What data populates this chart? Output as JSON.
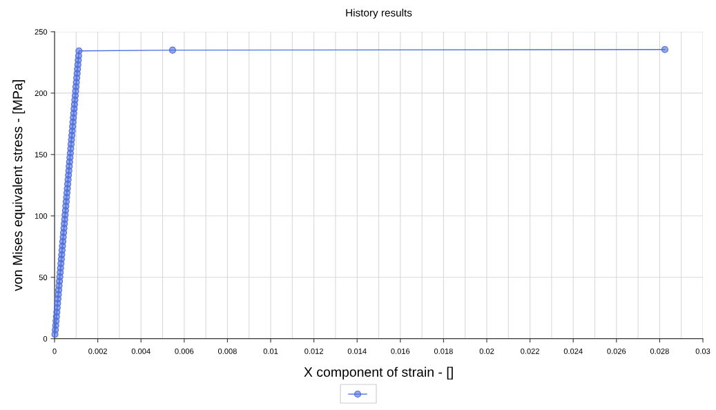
{
  "chart_data": {
    "type": "line",
    "title": "History results",
    "xlabel": "X component of strain - []",
    "ylabel": "von Mises equivalent stress - [MPa]",
    "series": [
      {
        "color": "#4f70dc",
        "x": [
          1.74e-05,
          3.48e-05,
          5.22e-05,
          6.96e-05,
          8.7e-05,
          0.0001043,
          0.0001217,
          0.0001391,
          0.0001565,
          0.0001739,
          0.0001913,
          0.0002087,
          0.0002261,
          0.0002435,
          0.0002609,
          0.0002783,
          0.0002956,
          0.000313,
          0.0003304,
          0.0003478,
          0.0003652,
          0.0003826,
          0.0004,
          0.0004174,
          0.0004348,
          0.0004522,
          0.0004696,
          0.0004869,
          0.0005043,
          0.0005217,
          0.0005391,
          0.0005565,
          0.0005739,
          0.0005913,
          0.0006087,
          0.0006261,
          0.0006435,
          0.0006609,
          0.0006782,
          0.0006956,
          0.000713,
          0.0007304,
          0.0007478,
          0.0007652,
          0.0007826,
          0.0008,
          0.0008174,
          0.0008348,
          0.0008522,
          0.0008696,
          0.0008869,
          0.0009043,
          0.0009217,
          0.0009391,
          0.0009565,
          0.0009739,
          0.0009913,
          0.0010087,
          0.0010261,
          0.0010435,
          0.0010609,
          0.0010782,
          0.0010956,
          0.001113,
          0.0011304,
          0.00546,
          0.02824
        ],
        "values": [
          3.6,
          7.2,
          10.8,
          14.4,
          18,
          21.6,
          25.2,
          28.8,
          32.4,
          36,
          39.6,
          43.2,
          46.8,
          50.4,
          54,
          57.6,
          61.2,
          64.8,
          68.4,
          72,
          75.6,
          79.2,
          82.8,
          86.4,
          90,
          93.6,
          97.2,
          100.8,
          104.4,
          108,
          111.6,
          115.2,
          118.8,
          122.4,
          126,
          129.6,
          133.2,
          136.8,
          140.4,
          144,
          147.6,
          151.2,
          154.8,
          158.4,
          162,
          165.6,
          169.2,
          172.8,
          176.4,
          180,
          183.6,
          187.2,
          190.8,
          194.4,
          198,
          201.6,
          205.2,
          208.8,
          212.4,
          216,
          219.6,
          223.2,
          226.8,
          230.4,
          234.4,
          235.0,
          235.5
        ]
      }
    ],
    "xlim": [
      0,
      0.03
    ],
    "ylim": [
      0,
      250
    ],
    "xticks": [
      0,
      {
        "value": 0.001,
        "label": null
      },
      0.002,
      {
        "value": 0.003,
        "label": null
      },
      0.004,
      {
        "value": 0.005,
        "label": null
      },
      0.006,
      {
        "value": 0.007,
        "label": null
      },
      0.008,
      {
        "value": 0.009,
        "label": null
      },
      0.01,
      {
        "value": 0.011,
        "label": null
      },
      0.012,
      {
        "value": 0.013,
        "label": null
      },
      0.014,
      {
        "value": 0.015,
        "label": null
      },
      0.016,
      {
        "value": 0.017,
        "label": null
      },
      0.018,
      {
        "value": 0.019,
        "label": null
      },
      0.02,
      {
        "value": 0.021,
        "label": null
      },
      0.022,
      {
        "value": 0.023,
        "label": null
      },
      0.024,
      {
        "value": 0.025,
        "label": null
      },
      0.026,
      {
        "value": 0.027,
        "label": null
      },
      0.028,
      {
        "value": 0.029,
        "label": null
      },
      0.03
    ],
    "yticks": [
      0,
      50,
      100,
      150,
      200,
      250
    ],
    "grid": true,
    "marker": "circle",
    "line_style": "solid"
  }
}
